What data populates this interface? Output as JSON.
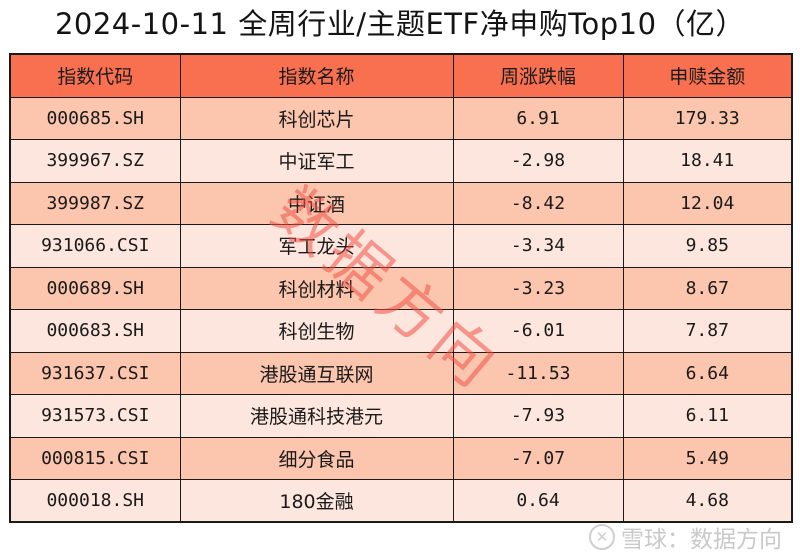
{
  "title": "2024-10-11 全周行业/主题ETF净申购Top10（亿）",
  "table": {
    "headers": [
      "指数代码",
      "指数名称",
      "周涨跌幅",
      "申赎金额"
    ],
    "rows": [
      {
        "code": "000685.SH",
        "name": "科创芯片",
        "weekly_change": "6.91",
        "net_subscription": "179.33"
      },
      {
        "code": "399967.SZ",
        "name": "中证军工",
        "weekly_change": "-2.98",
        "net_subscription": "18.41"
      },
      {
        "code": "399987.SZ",
        "name": "中证酒",
        "weekly_change": "-8.42",
        "net_subscription": "12.04"
      },
      {
        "code": "931066.CSI",
        "name": "军工龙头",
        "weekly_change": "-3.34",
        "net_subscription": "9.85"
      },
      {
        "code": "000689.SH",
        "name": "科创材料",
        "weekly_change": "-3.23",
        "net_subscription": "8.67"
      },
      {
        "code": "000683.SH",
        "name": "科创生物",
        "weekly_change": "-6.01",
        "net_subscription": "7.87"
      },
      {
        "code": "931637.CSI",
        "name": "港股通互联网",
        "weekly_change": "-11.53",
        "net_subscription": "6.64"
      },
      {
        "code": "931573.CSI",
        "name": "港股通科技港元",
        "weekly_change": "-7.93",
        "net_subscription": "6.11"
      },
      {
        "code": "000815.CSI",
        "name": "细分食品",
        "weekly_change": "-7.07",
        "net_subscription": "5.49"
      },
      {
        "code": "000018.SH",
        "name": "180金融",
        "weekly_change": "0.64",
        "net_subscription": "4.68"
      }
    ]
  },
  "watermark": {
    "stamp_text": "数据方向",
    "footer_logo_icon": "snowball-logo-icon",
    "footer_logo_glyph": "✕",
    "footer_text": "雪球：数据方向"
  },
  "colors": {
    "header_bg": "#f8704f",
    "row_odd_bg": "#fbc5ae",
    "row_even_bg": "#fde6de",
    "border": "#1a1a1a",
    "stamp": "#f05046",
    "footer_mark": "#c9c9c9"
  }
}
